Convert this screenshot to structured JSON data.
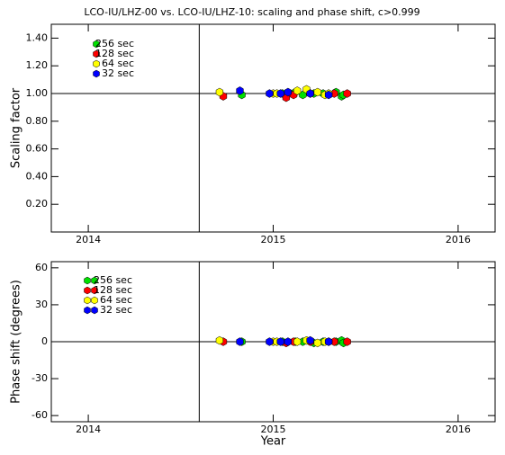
{
  "chart_data": [
    {
      "type": "scatter",
      "title": "LCO-IU/LHZ-00 vs. LCO-IU/LHZ-10: scaling and phase shift, c>0.999",
      "ylabel": "Scaling factor",
      "xlim": [
        2013.8,
        2016.2
      ],
      "xticks": [
        2014,
        2015,
        2016
      ],
      "ylim": [
        0,
        1.5
      ],
      "yticks": [
        {
          "value": 0.2,
          "label": "0.20"
        },
        {
          "value": 0.4,
          "label": "0.40"
        },
        {
          "value": 0.6,
          "label": "0.60"
        },
        {
          "value": 0.8,
          "label": "0.80"
        },
        {
          "value": 1.0,
          "label": "1.00"
        },
        {
          "value": 1.2,
          "label": "1.20"
        },
        {
          "value": 1.4,
          "label": "1.40"
        }
      ],
      "hline": 1,
      "vline": 2014.6,
      "series": [
        {
          "name": "256 sec",
          "color": "#00e000",
          "x": [
            2014.83,
            2015.05,
            2015.12,
            2015.16,
            2015.22,
            2015.27,
            2015.34,
            2015.37,
            2015.38
          ],
          "values": [
            0.99,
            1.0,
            1.01,
            0.99,
            1.0,
            1.0,
            1.01,
            0.98,
            0.99
          ]
        },
        {
          "name": "128 sec",
          "color": "#ff0000",
          "x": [
            2014.73,
            2015.07,
            2015.11,
            2015.2,
            2015.33,
            2015.4
          ],
          "values": [
            0.98,
            0.97,
            0.99,
            1.0,
            1.0,
            1.0
          ]
        },
        {
          "name": "64 sec",
          "color": "#ffff00",
          "x": [
            2014.71,
            2015.0,
            2015.02,
            2015.13,
            2015.18,
            2015.24,
            2015.28,
            2015.3
          ],
          "values": [
            1.01,
            1.0,
            1.0,
            1.02,
            1.03,
            1.01,
            0.99,
            1.0
          ]
        },
        {
          "name": "32 sec",
          "color": "#0000ff",
          "x": [
            2014.82,
            2014.98,
            2015.04,
            2015.08,
            2015.2,
            2015.3
          ],
          "values": [
            1.02,
            1.0,
            1.0,
            1.01,
            1.0,
            0.99
          ]
        }
      ]
    },
    {
      "type": "scatter",
      "ylabel": "Phase shift (degrees)",
      "xlabel": "Year",
      "xlim": [
        2013.8,
        2016.2
      ],
      "xticks": [
        2014,
        2015,
        2016
      ],
      "ylim": [
        -65,
        65
      ],
      "yticks": [
        -60,
        -30,
        0,
        30,
        60
      ],
      "hline": 0,
      "vline": 2014.6,
      "series": [
        {
          "name": "256 sec",
          "color": "#00e000",
          "x": [
            2014.83,
            2015.05,
            2015.12,
            2015.16,
            2015.22,
            2015.27,
            2015.34,
            2015.37,
            2015.38
          ],
          "values": [
            0,
            0,
            0,
            0,
            -1,
            0,
            0,
            1,
            -1
          ]
        },
        {
          "name": "128 sec",
          "color": "#ff0000",
          "x": [
            2014.73,
            2015.07,
            2015.11,
            2015.2,
            2015.33,
            2015.4
          ],
          "values": [
            0,
            -1,
            0,
            0,
            0,
            0
          ]
        },
        {
          "name": "64 sec",
          "color": "#ffff00",
          "x": [
            2014.71,
            2015.0,
            2015.02,
            2015.13,
            2015.18,
            2015.24,
            2015.28,
            2015.3
          ],
          "values": [
            1,
            0,
            0,
            0,
            1,
            -1,
            0,
            0
          ]
        },
        {
          "name": "32 sec",
          "color": "#0000ff",
          "x": [
            2014.82,
            2014.98,
            2015.04,
            2015.08,
            2015.2,
            2015.3
          ],
          "values": [
            0,
            0,
            0,
            0,
            1,
            0
          ]
        }
      ]
    }
  ]
}
